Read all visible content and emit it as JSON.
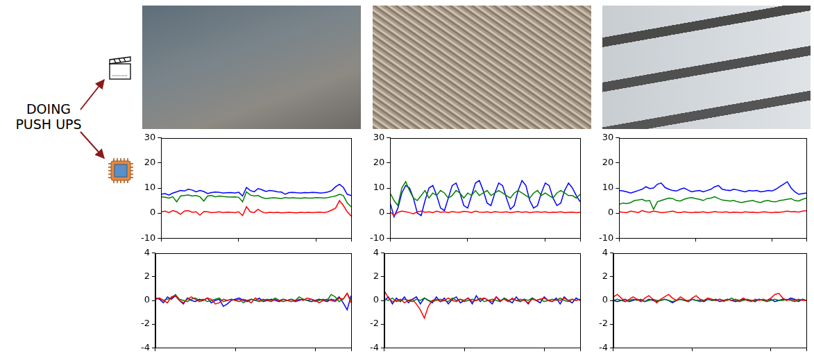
{
  "label": "DOING PUSH UPS",
  "chart_data": [
    {
      "type": "line",
      "ylim": [
        -10,
        30
      ],
      "yticks": [
        -10,
        0,
        10,
        20,
        30
      ],
      "tick_labels": "y",
      "series": [
        {
          "color": "red",
          "values": [
            0.5,
            0.8,
            0.2,
            1,
            0.5,
            -0.5,
            0.8,
            1,
            0.3,
            0.5,
            -0.8,
            0.6,
            0.5,
            0.2,
            0.3,
            0.5,
            0.2,
            0.4,
            0.3,
            0.2,
            0.5,
            -1,
            2.5,
            0.5,
            0.2,
            1.5,
            0.5,
            0,
            0.3,
            0.2,
            0.3,
            0.1,
            0.2,
            0.3,
            0.2,
            0.1,
            0.3,
            0.2,
            0.3,
            0.2,
            0.3,
            0.4,
            0.2,
            0.5,
            1.2,
            2,
            5,
            3,
            0.5,
            -1.2
          ]
        },
        {
          "color": "green",
          "values": [
            6.5,
            6.3,
            6,
            6.5,
            4.5,
            6.8,
            7,
            7.2,
            6.8,
            7,
            6.5,
            4.8,
            6.8,
            7,
            6.5,
            6.8,
            6.6,
            6.5,
            6.4,
            6.5,
            6.3,
            4.5,
            8.5,
            7.2,
            6.8,
            7,
            6.2,
            5.8,
            6,
            6.1,
            6,
            5.8,
            6.2,
            6,
            6.1,
            6,
            5.9,
            6.1,
            6,
            6,
            6.2,
            6.1,
            6,
            6.2,
            6.5,
            6.8,
            7.5,
            7,
            4,
            2.5
          ]
        },
        {
          "color": "blue",
          "values": [
            7.5,
            7.8,
            7.2,
            8,
            8.5,
            9,
            8.8,
            9.5,
            9.2,
            8.5,
            9,
            8.6,
            7.8,
            8.2,
            8.4,
            8.3,
            8,
            8.1,
            8.2,
            8,
            8.3,
            6.8,
            10.2,
            9,
            8.5,
            9.8,
            9.3,
            8.6,
            9,
            8.8,
            8.5,
            8.4,
            7.5,
            8.2,
            8.3,
            8.1,
            8,
            8.2,
            8.1,
            8.3,
            8.2,
            8,
            8.1,
            8.4,
            9,
            10.5,
            11.5,
            10.2,
            7.5,
            7
          ]
        }
      ]
    },
    {
      "type": "line",
      "ylim": [
        -10,
        30
      ],
      "yticks": [
        -10,
        0,
        10,
        20,
        30
      ],
      "tick_labels": "y",
      "series": [
        {
          "color": "red",
          "values": [
            0.5,
            -1,
            0.3,
            0.8,
            0.5,
            0.2,
            -0.3,
            0.5,
            0.8,
            0.3,
            0.5,
            0.2,
            0.8,
            0.3,
            0.5,
            0.2,
            0.6,
            0.4,
            0.3,
            0.7,
            0.5,
            0.2,
            0.8,
            0.4,
            0.3,
            0.5,
            0.2,
            0.6,
            0.4,
            0.3,
            0.5,
            0.2,
            0.4,
            0.6,
            0.3,
            0.5,
            0.2,
            0.4,
            0.5,
            0.3,
            0.5,
            0.2,
            0.4,
            0.3,
            0.5,
            0.2,
            0.3,
            0.4,
            0.2,
            0.3
          ]
        },
        {
          "color": "green",
          "values": [
            8,
            5,
            3,
            10,
            12.5,
            9,
            6,
            5,
            7,
            9,
            6,
            8,
            7,
            9,
            8,
            6,
            7,
            9,
            8,
            6,
            8,
            7,
            9,
            7,
            8,
            9,
            7,
            8,
            9,
            8,
            7,
            6,
            8,
            9,
            8,
            7,
            6,
            8,
            9,
            7,
            8,
            7,
            6,
            8,
            9,
            8,
            7,
            7,
            6,
            7.5
          ]
        },
        {
          "color": "blue",
          "values": [
            4,
            -1.5,
            2,
            8,
            11,
            10,
            6,
            0,
            -1,
            5,
            10,
            11,
            7,
            2,
            1,
            6,
            11,
            12,
            8,
            3,
            2,
            7,
            12,
            13,
            9,
            4,
            3,
            8,
            12,
            11,
            6,
            1.5,
            3,
            9,
            13,
            11,
            5,
            2,
            3,
            8,
            12,
            11,
            6,
            3,
            4,
            9,
            12,
            10,
            7,
            4.5
          ]
        }
      ]
    },
    {
      "type": "line",
      "ylim": [
        -10,
        30
      ],
      "yticks": [
        -10,
        0,
        10,
        20,
        30
      ],
      "tick_labels": "y",
      "series": [
        {
          "color": "red",
          "values": [
            0.5,
            0.3,
            0.2,
            0.8,
            0.5,
            0.2,
            1,
            0.5,
            0.3,
            0.8,
            0.5,
            0.2,
            0.3,
            0.5,
            0.8,
            0.3,
            0.2,
            0.5,
            0.3,
            0.2,
            0.4,
            0.3,
            0.5,
            0.2,
            0.3,
            0.6,
            0.4,
            0.3,
            0.5,
            0.2,
            0.4,
            0.3,
            0.2,
            0.5,
            0.3,
            0.4,
            0.2,
            0.3,
            0.5,
            0.3,
            0.2,
            0.4,
            0.3,
            0.5,
            0.8,
            0.5,
            0.6,
            0.4,
            0.8,
            0.9
          ]
        },
        {
          "color": "green",
          "values": [
            3.5,
            4,
            3.8,
            4.2,
            5,
            5.2,
            5.5,
            4.8,
            5,
            1.5,
            4.5,
            5,
            5.5,
            6,
            5.8,
            5,
            4.8,
            5.5,
            6,
            6.2,
            5.8,
            5.5,
            5,
            5.8,
            6,
            6.5,
            5.8,
            5.2,
            5,
            4.8,
            5,
            4.5,
            4.2,
            4.5,
            4.8,
            5,
            4.5,
            4.2,
            4.8,
            5,
            4.6,
            4.5,
            5,
            5.2,
            5.5,
            5.8,
            5,
            4.8,
            5.5,
            6
          ]
        },
        {
          "color": "blue",
          "values": [
            9,
            8.8,
            8.5,
            8,
            8.5,
            9,
            9.5,
            10.5,
            9.8,
            10,
            11.5,
            12,
            10.2,
            9.5,
            9,
            8.8,
            9.5,
            10,
            9.2,
            8.5,
            8.8,
            9,
            8.5,
            9,
            9.5,
            10.5,
            11,
            9.5,
            9.2,
            9,
            9.5,
            9.2,
            8.8,
            8.5,
            9,
            8.8,
            9,
            8.5,
            8.7,
            9,
            8.8,
            9.5,
            10.5,
            11.5,
            12.5,
            10,
            8.5,
            7.5,
            7.8,
            8
          ]
        }
      ]
    },
    {
      "type": "line",
      "ylim": [
        -4,
        4
      ],
      "yticks": [
        -4,
        -2,
        0,
        2,
        4
      ],
      "tick_labels": "y",
      "series": [
        {
          "color": "red",
          "values": [
            0.1,
            0.2,
            0,
            -0.2,
            0.3,
            0.4,
            0,
            -0.2,
            0.1,
            0.3,
            0.1,
            -0.1,
            0,
            0.2,
            0.1,
            -0.3,
            -0.2,
            0.1,
            0,
            0.1,
            0,
            -0.1,
            0.1,
            0,
            -0.2,
            0.2,
            0,
            0.1,
            0,
            -0.1,
            0.1,
            0,
            0.1,
            0,
            -0.1,
            0,
            0.1,
            0,
            0.2,
            0.1,
            0,
            -0.2,
            0,
            0.1,
            0,
            -0.1,
            0.2,
            0.1,
            0.6,
            -0.2
          ]
        },
        {
          "color": "green",
          "values": [
            0.1,
            0.2,
            0,
            0.1,
            0.2,
            0.5,
            0.1,
            0,
            -0.1,
            0.1,
            0.2,
            0,
            0.1,
            -0.1,
            0,
            0.1,
            0.2,
            -0.1,
            0,
            0.1,
            0,
            0.1,
            -0.2,
            0,
            0.1,
            0,
            -0.1,
            0,
            0.1,
            0,
            0.2,
            0,
            -0.1,
            0,
            0.1,
            0,
            0.3,
            0.1,
            0,
            0.1,
            -0.1,
            0,
            0.1,
            0,
            0.5,
            0.3,
            -0.1,
            0.1,
            0.6,
            0
          ]
        },
        {
          "color": "blue",
          "values": [
            0.2,
            0.1,
            -0.2,
            0.3,
            0.1,
            0.4,
            0,
            -0.3,
            0.2,
            0,
            -0.1,
            0.1,
            0,
            0.2,
            -0.2,
            0,
            0.1,
            -0.5,
            -0.3,
            0,
            0.1,
            0.2,
            0,
            -0.1,
            0.1,
            0,
            0.2,
            -0.1,
            0,
            0.1,
            0,
            -0.1,
            0.1,
            0,
            0.1,
            -0.1,
            0,
            0.1,
            0,
            -0.1,
            0,
            0.1,
            0,
            -0.1,
            0.1,
            0,
            0.3,
            -0.2,
            -0.8,
            0.4
          ]
        }
      ]
    },
    {
      "type": "line",
      "ylim": [
        -4,
        4
      ],
      "yticks": [
        -4,
        -2,
        0,
        2,
        4
      ],
      "tick_labels": "y",
      "series": [
        {
          "color": "red",
          "values": [
            0.8,
            0.2,
            -0.1,
            0,
            0.1,
            -0.2,
            0,
            0.1,
            -0.3,
            -0.8,
            -1.5,
            -0.5,
            0,
            0.1,
            -0.1,
            0,
            0.2,
            0,
            -0.1,
            0.1,
            0,
            0.2,
            -0.1,
            0,
            0.1,
            0.2,
            0,
            -0.1,
            0.3,
            0,
            0.1,
            -0.1,
            0.2,
            0,
            0.1,
            0,
            -0.2,
            0.1,
            0,
            0.1,
            0.2,
            0,
            -0.1,
            0.1,
            0,
            0.2,
            0,
            0.1,
            0,
            0.1
          ]
        },
        {
          "color": "green",
          "values": [
            0.1,
            0,
            0.2,
            -0.1,
            0,
            0.1,
            0,
            -0.1,
            0.1,
            0,
            0.2,
            0,
            -0.1,
            0,
            0.1,
            0,
            -0.1,
            0.2,
            0,
            0.1,
            -0.1,
            0,
            0.1,
            0,
            0.2,
            -0.1,
            0,
            0.1,
            0,
            -0.1,
            0.2,
            0,
            0.1,
            0,
            -0.1,
            0.1,
            0,
            0.2,
            0,
            0.1,
            -0.1,
            0,
            0.1,
            0,
            0.2,
            0,
            -0.1,
            0.1,
            0,
            0.1
          ]
        },
        {
          "color": "blue",
          "values": [
            0,
            0.3,
            -0.3,
            0.2,
            -0.1,
            0.3,
            -0.2,
            0.1,
            0.3,
            -0.3,
            0.2,
            0,
            -0.2,
            0.3,
            -0.1,
            0.2,
            -0.3,
            0.1,
            0.3,
            -0.2,
            0,
            0.2,
            -0.3,
            0.4,
            -0.1,
            0.2,
            0,
            -0.3,
            0.3,
            -0.1,
            0.2,
            0,
            -0.2,
            0.3,
            -0.1,
            0.1,
            -0.3,
            0.2,
            0,
            -0.2,
            0.3,
            0,
            -0.1,
            0.2,
            -0.3,
            0.3,
            0,
            -0.2,
            0.2,
            0
          ]
        }
      ]
    },
    {
      "type": "line",
      "ylim": [
        -4,
        4
      ],
      "yticks": [
        -4,
        -2,
        0,
        2,
        4
      ],
      "tick_labels": "y",
      "series": [
        {
          "color": "red",
          "values": [
            0.3,
            0.5,
            0.2,
            -0.1,
            0.1,
            0.3,
            0.1,
            -0.1,
            0.2,
            0.4,
            0.1,
            -0.2,
            0.1,
            0.3,
            0.5,
            0.2,
            0,
            0.3,
            0.1,
            -0.1,
            0.2,
            0.4,
            0.1,
            0,
            0.2,
            0.1,
            0,
            0.1,
            -0.1,
            0.1,
            0,
            0.1,
            0,
            0.2,
            0,
            -0.1,
            0.1,
            0,
            0.1,
            0,
            0.2,
            0.5,
            0.6,
            0.2,
            0,
            0.1,
            0,
            0.1,
            0,
            0
          ]
        },
        {
          "color": "green",
          "values": [
            0,
            0.1,
            0,
            -0.1,
            0,
            0.1,
            0,
            0.1,
            -0.1,
            0,
            0.1,
            0,
            0,
            0.1,
            0,
            -0.1,
            0,
            0.1,
            0,
            0,
            0.1,
            0,
            -0.1,
            0,
            0.1,
            0,
            0,
            0.1,
            0,
            0,
            0.2,
            0,
            -0.1,
            0,
            0.1,
            0,
            0,
            0.1,
            0,
            -0.1,
            0,
            0.1,
            0,
            0,
            0.1,
            0,
            -0.1,
            0,
            0.1,
            0
          ]
        },
        {
          "color": "blue",
          "values": [
            0,
            -0.1,
            0,
            0.1,
            -0.1,
            0,
            0.1,
            0,
            -0.1,
            0.1,
            0,
            -0.1,
            0,
            0.1,
            0,
            -0.2,
            0,
            0.1,
            0,
            -0.1,
            0.1,
            0,
            0,
            -0.1,
            0.1,
            0,
            0.1,
            -0.1,
            0,
            0.1,
            0,
            -0.1,
            0,
            0.1,
            0,
            0,
            -0.1,
            0.1,
            0,
            0,
            0.1,
            -0.1,
            0,
            0.1,
            0,
            0.2,
            0.1,
            -0.1,
            0.1,
            0
          ]
        }
      ]
    }
  ]
}
